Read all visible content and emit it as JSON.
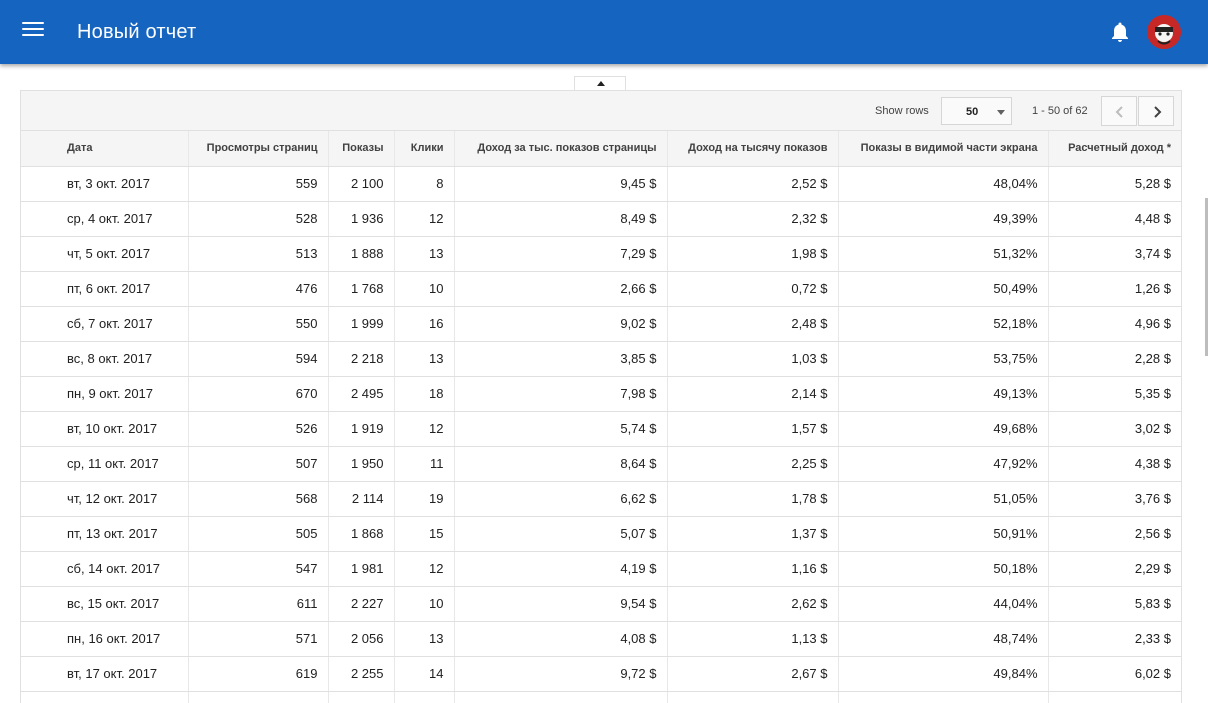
{
  "header": {
    "title": "Новый отчет",
    "menu_icon": "menu-icon",
    "bell_icon": "bell-icon",
    "avatar_icon": "avatar",
    "brand_color": "#1565c0"
  },
  "toolbar": {
    "show_rows_label": "Show rows",
    "rows_value": "50",
    "range_text": "1 - 50 of 62",
    "prev_icon": "chevron-left-icon",
    "next_icon": "chevron-right-icon"
  },
  "table": {
    "columns": [
      "Дата",
      "Просмотры страниц",
      "Показы",
      "Клики",
      "Доход за тыс. показов страницы",
      "Доход на тысячу показов",
      "Показы в видимой части экрана",
      "Расчетный доход *"
    ],
    "rows": [
      [
        "вт, 3 окт. 2017",
        "559",
        "2 100",
        "8",
        "9,45 $",
        "2,52 $",
        "48,04%",
        "5,28 $"
      ],
      [
        "ср, 4 окт. 2017",
        "528",
        "1 936",
        "12",
        "8,49 $",
        "2,32 $",
        "49,39%",
        "4,48 $"
      ],
      [
        "чт, 5 окт. 2017",
        "513",
        "1 888",
        "13",
        "7,29 $",
        "1,98 $",
        "51,32%",
        "3,74 $"
      ],
      [
        "пт, 6 окт. 2017",
        "476",
        "1 768",
        "10",
        "2,66 $",
        "0,72 $",
        "50,49%",
        "1,26 $"
      ],
      [
        "сб, 7 окт. 2017",
        "550",
        "1 999",
        "16",
        "9,02 $",
        "2,48 $",
        "52,18%",
        "4,96 $"
      ],
      [
        "вс, 8 окт. 2017",
        "594",
        "2 218",
        "13",
        "3,85 $",
        "1,03 $",
        "53,75%",
        "2,28 $"
      ],
      [
        "пн, 9 окт. 2017",
        "670",
        "2 495",
        "18",
        "7,98 $",
        "2,14 $",
        "49,13%",
        "5,35 $"
      ],
      [
        "вт, 10 окт. 2017",
        "526",
        "1 919",
        "12",
        "5,74 $",
        "1,57 $",
        "49,68%",
        "3,02 $"
      ],
      [
        "ср, 11 окт. 2017",
        "507",
        "1 950",
        "11",
        "8,64 $",
        "2,25 $",
        "47,92%",
        "4,38 $"
      ],
      [
        "чт, 12 окт. 2017",
        "568",
        "2 114",
        "19",
        "6,62 $",
        "1,78 $",
        "51,05%",
        "3,76 $"
      ],
      [
        "пт, 13 окт. 2017",
        "505",
        "1 868",
        "15",
        "5,07 $",
        "1,37 $",
        "50,91%",
        "2,56 $"
      ],
      [
        "сб, 14 окт. 2017",
        "547",
        "1 981",
        "12",
        "4,19 $",
        "1,16 $",
        "50,18%",
        "2,29 $"
      ],
      [
        "вс, 15 окт. 2017",
        "611",
        "2 227",
        "10",
        "9,54 $",
        "2,62 $",
        "44,04%",
        "5,83 $"
      ],
      [
        "пн, 16 окт. 2017",
        "571",
        "2 056",
        "13",
        "4,08 $",
        "1,13 $",
        "48,74%",
        "2,33 $"
      ],
      [
        "вт, 17 окт. 2017",
        "619",
        "2 255",
        "14",
        "9,72 $",
        "2,67 $",
        "49,84%",
        "6,02 $"
      ],
      [
        "",
        "",
        "",
        "",
        "",
        "",
        "",
        ""
      ]
    ]
  }
}
